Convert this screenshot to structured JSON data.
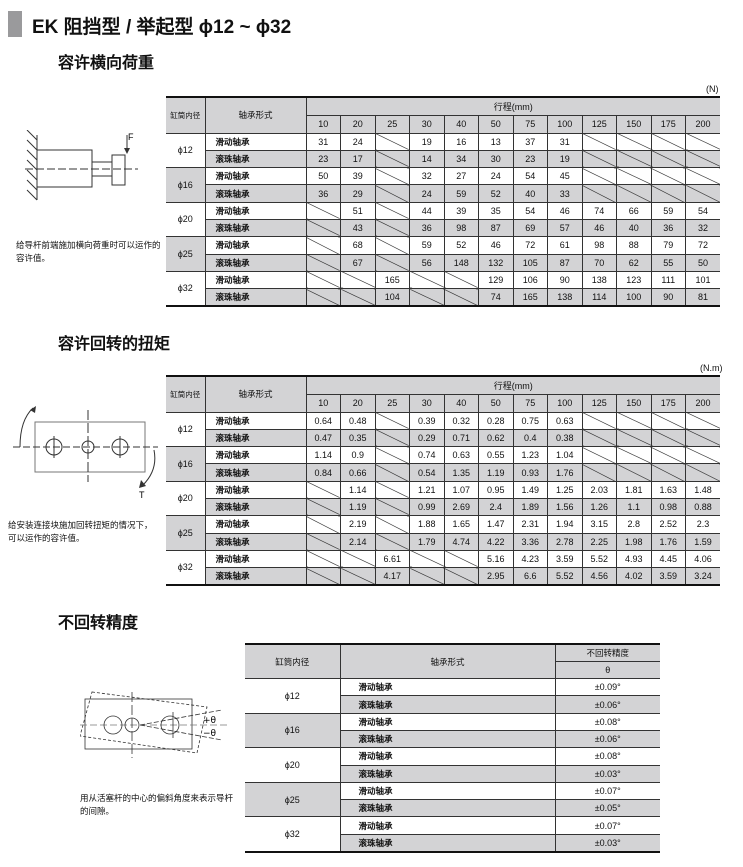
{
  "title": "EK 阻挡型 / 举起型 ϕ12 ~ ϕ32",
  "colors": {
    "header_gray": "#d3d3d5",
    "title_block": "#9a9a9c"
  },
  "sections": [
    {
      "heading": "容许横向荷重",
      "unit": "(N)",
      "caption": "给导杆前端施加横向荷重时可以运作的容许值。",
      "diagram_label": "F",
      "headers": {
        "bore": "缸筒内径",
        "bearing": "轴承形式",
        "stroke": "行程(mm)"
      },
      "strokes": [
        "10",
        "20",
        "25",
        "30",
        "40",
        "50",
        "75",
        "100",
        "125",
        "150",
        "175",
        "200"
      ],
      "rows": [
        {
          "bore": "ϕ12",
          "types": [
            {
              "type": "滑动轴承",
              "values": [
                "31",
                "24",
                null,
                "19",
                "16",
                "13",
                "37",
                "31",
                null,
                null,
                null,
                null
              ]
            },
            {
              "type": "滚珠轴承",
              "values": [
                "23",
                "17",
                null,
                "14",
                "34",
                "30",
                "23",
                "19",
                null,
                null,
                null,
                null
              ]
            }
          ]
        },
        {
          "bore": "ϕ16",
          "types": [
            {
              "type": "滑动轴承",
              "values": [
                "50",
                "39",
                null,
                "32",
                "27",
                "24",
                "54",
                "45",
                null,
                null,
                null,
                null
              ]
            },
            {
              "type": "滚珠轴承",
              "values": [
                "36",
                "29",
                null,
                "24",
                "59",
                "52",
                "40",
                "33",
                null,
                null,
                null,
                null
              ]
            }
          ]
        },
        {
          "bore": "ϕ20",
          "types": [
            {
              "type": "滑动轴承",
              "values": [
                null,
                "51",
                null,
                "44",
                "39",
                "35",
                "54",
                "46",
                "74",
                "66",
                "59",
                "54"
              ]
            },
            {
              "type": "滚珠轴承",
              "values": [
                null,
                "43",
                null,
                "36",
                "98",
                "87",
                "69",
                "57",
                "46",
                "40",
                "36",
                "32"
              ]
            }
          ]
        },
        {
          "bore": "ϕ25",
          "types": [
            {
              "type": "滑动轴承",
              "values": [
                null,
                "68",
                null,
                "59",
                "52",
                "46",
                "72",
                "61",
                "98",
                "88",
                "79",
                "72"
              ]
            },
            {
              "type": "滚珠轴承",
              "values": [
                null,
                "67",
                null,
                "56",
                "148",
                "132",
                "105",
                "87",
                "70",
                "62",
                "55",
                "50"
              ]
            }
          ]
        },
        {
          "bore": "ϕ32",
          "types": [
            {
              "type": "滑动轴承",
              "values": [
                null,
                null,
                "165",
                null,
                null,
                "129",
                "106",
                "90",
                "138",
                "123",
                "111",
                "101"
              ]
            },
            {
              "type": "滚珠轴承",
              "values": [
                null,
                null,
                "104",
                null,
                null,
                "74",
                "165",
                "138",
                "114",
                "100",
                "90",
                "81"
              ]
            }
          ]
        }
      ]
    },
    {
      "heading": "容许回转的扭矩",
      "unit": "(N.m)",
      "caption": "给安装连接块施加回转扭矩的情况下，可以运作的容许值。",
      "diagram_label": "T",
      "headers": {
        "bore": "缸筒内径",
        "bearing": "轴承形式",
        "stroke": "行程(mm)"
      },
      "strokes": [
        "10",
        "20",
        "25",
        "30",
        "40",
        "50",
        "75",
        "100",
        "125",
        "150",
        "175",
        "200"
      ],
      "rows": [
        {
          "bore": "ϕ12",
          "types": [
            {
              "type": "滑动轴承",
              "values": [
                "0.64",
                "0.48",
                null,
                "0.39",
                "0.32",
                "0.28",
                "0.75",
                "0.63",
                null,
                null,
                null,
                null
              ]
            },
            {
              "type": "滚珠轴承",
              "values": [
                "0.47",
                "0.35",
                null,
                "0.29",
                "0.71",
                "0.62",
                "0.4",
                "0.38",
                null,
                null,
                null,
                null
              ]
            }
          ]
        },
        {
          "bore": "ϕ16",
          "types": [
            {
              "type": "滑动轴承",
              "values": [
                "1.14",
                "0.9",
                null,
                "0.74",
                "0.63",
                "0.55",
                "1.23",
                "1.04",
                null,
                null,
                null,
                null
              ]
            },
            {
              "type": "滚珠轴承",
              "values": [
                "0.84",
                "0.66",
                null,
                "0.54",
                "1.35",
                "1.19",
                "0.93",
                "1.76",
                null,
                null,
                null,
                null
              ]
            }
          ]
        },
        {
          "bore": "ϕ20",
          "types": [
            {
              "type": "滑动轴承",
              "values": [
                null,
                "1.14",
                null,
                "1.21",
                "1.07",
                "0.95",
                "1.49",
                "1.25",
                "2.03",
                "1.81",
                "1.63",
                "1.48"
              ]
            },
            {
              "type": "滚珠轴承",
              "values": [
                null,
                "1.19",
                null,
                "0.99",
                "2.69",
                "2.4",
                "1.89",
                "1.56",
                "1.26",
                "1.1",
                "0.98",
                "0.88"
              ]
            }
          ]
        },
        {
          "bore": "ϕ25",
          "types": [
            {
              "type": "滑动轴承",
              "values": [
                null,
                "2.19",
                null,
                "1.88",
                "1.65",
                "1.47",
                "2.31",
                "1.94",
                "3.15",
                "2.8",
                "2.52",
                "2.3"
              ]
            },
            {
              "type": "滚珠轴承",
              "values": [
                null,
                "2.14",
                null,
                "1.79",
                "4.74",
                "4.22",
                "3.36",
                "2.78",
                "2.25",
                "1.98",
                "1.76",
                "1.59"
              ]
            }
          ]
        },
        {
          "bore": "ϕ32",
          "types": [
            {
              "type": "滑动轴承",
              "values": [
                null,
                null,
                "6.61",
                null,
                null,
                "5.16",
                "4.23",
                "3.59",
                "5.52",
                "4.93",
                "4.45",
                "4.06"
              ]
            },
            {
              "type": "滚珠轴承",
              "values": [
                null,
                null,
                "4.17",
                null,
                null,
                "2.95",
                "6.6",
                "5.52",
                "4.56",
                "4.02",
                "3.59",
                "3.24"
              ]
            }
          ]
        }
      ]
    }
  ],
  "accuracy": {
    "heading": "不回转精度",
    "caption": "用从活塞杆的中心的偏斜角度来表示导杆的间隙。",
    "headers": {
      "bore": "缸筒内径",
      "bearing": "轴承形式",
      "accuracy": "不回转精度",
      "theta": "θ"
    },
    "diagram_labels": [
      "+θ",
      "−θ"
    ],
    "rows": [
      {
        "bore": "ϕ12",
        "types": [
          {
            "type": "滑动轴承",
            "value": "±0.09°"
          },
          {
            "type": "滚珠轴承",
            "value": "±0.06°"
          }
        ]
      },
      {
        "bore": "ϕ16",
        "types": [
          {
            "type": "滑动轴承",
            "value": "±0.08°"
          },
          {
            "type": "滚珠轴承",
            "value": "±0.06°"
          }
        ]
      },
      {
        "bore": "ϕ20",
        "types": [
          {
            "type": "滑动轴承",
            "value": "±0.08°"
          },
          {
            "type": "滚珠轴承",
            "value": "±0.03°"
          }
        ]
      },
      {
        "bore": "ϕ25",
        "types": [
          {
            "type": "滑动轴承",
            "value": "±0.07°"
          },
          {
            "type": "滚珠轴承",
            "value": "±0.05°"
          }
        ]
      },
      {
        "bore": "ϕ32",
        "types": [
          {
            "type": "滑动轴承",
            "value": "±0.07°"
          },
          {
            "type": "滚珠轴承",
            "value": "±0.03°"
          }
        ]
      }
    ]
  }
}
